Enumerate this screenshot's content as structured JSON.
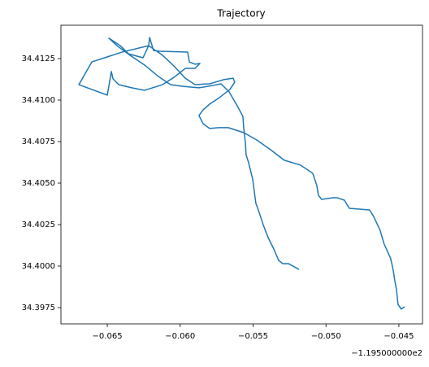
{
  "chart_data": {
    "type": "line",
    "title": "Trajectory",
    "x_offset_label": "−1.195000000e2",
    "color": "#1f77b4",
    "xlim": [
      -0.06818,
      -0.04338
    ],
    "ylim": [
      34.39652,
      34.41451
    ],
    "xticks": [
      {
        "value": -0.065,
        "label": "−0.065"
      },
      {
        "value": -0.06,
        "label": "−0.060"
      },
      {
        "value": -0.055,
        "label": "−0.055"
      },
      {
        "value": -0.05,
        "label": "−0.050"
      },
      {
        "value": -0.045,
        "label": "−0.045"
      }
    ],
    "yticks": [
      34.3975,
      {
        "value": 34.4,
        "label": "34.4000"
      },
      34.4025,
      {
        "value": 34.405,
        "label": "34.4050"
      },
      34.4075,
      {
        "value": 34.41,
        "label": "34.4100"
      },
      34.4125
    ],
    "x": [
      -0.05185,
      -0.05258,
      -0.05297,
      -0.05325,
      -0.05358,
      -0.05397,
      -0.05431,
      -0.05464,
      -0.05481,
      -0.05492,
      -0.05503,
      -0.05531,
      -0.05548,
      -0.05553,
      -0.05564,
      -0.0557,
      -0.05609,
      -0.05664,
      -0.0572,
      -0.05776,
      -0.05871,
      -0.05982,
      -0.06066,
      -0.06149,
      -0.06244,
      -0.06344,
      -0.06428,
      -0.06489,
      -0.06411,
      -0.06355,
      -0.06255,
      -0.06216,
      -0.0621,
      -0.06183,
      -0.06138,
      -0.05949,
      -0.05937,
      -0.05898,
      -0.05865,
      -0.05898,
      -0.05965,
      -0.06043,
      -0.06121,
      -0.06244,
      -0.06333,
      -0.06422,
      -0.06461,
      -0.06472,
      -0.065,
      -0.06695,
      -0.06606,
      -0.064,
      -0.06216,
      -0.06121,
      -0.06038,
      -0.05965,
      -0.05898,
      -0.05798,
      -0.05703,
      -0.05637,
      -0.05626,
      -0.05659,
      -0.05731,
      -0.05798,
      -0.05843,
      -0.05871,
      -0.05843,
      -0.05798,
      -0.05737,
      -0.0567,
      -0.05564,
      -0.05475,
      -0.0538,
      -0.05286,
      -0.05174,
      -0.05091,
      -0.05063,
      -0.05052,
      -0.0503,
      -0.04952,
      -0.04924,
      -0.04874,
      -0.0484,
      -0.04701,
      -0.04673,
      -0.04629,
      -0.04601,
      -0.04556,
      -0.04539,
      -0.04528,
      -0.04517,
      -0.04506,
      -0.04484,
      -0.04461
    ],
    "values": [
      34.3998,
      34.40015,
      34.40015,
      34.40035,
      34.40103,
      34.40172,
      34.4025,
      34.40338,
      34.40378,
      34.40451,
      34.40525,
      34.40623,
      34.40672,
      34.40745,
      34.40829,
      34.40902,
      34.40966,
      34.41049,
      34.41098,
      34.41088,
      34.41074,
      34.41083,
      34.41093,
      34.41142,
      34.41211,
      34.4127,
      34.41324,
      34.41373,
      34.41328,
      34.41279,
      34.41255,
      34.41328,
      34.41377,
      34.41299,
      34.41294,
      34.41289,
      34.4123,
      34.41216,
      34.41221,
      34.41191,
      34.41191,
      34.41137,
      34.41093,
      34.41059,
      34.41074,
      34.41093,
      34.41128,
      34.41172,
      34.4103,
      34.41093,
      34.4123,
      34.41289,
      34.41328,
      34.4127,
      34.41201,
      34.41132,
      34.41093,
      34.41098,
      34.41123,
      34.41132,
      34.41108,
      34.41064,
      34.41015,
      34.40976,
      34.40941,
      34.40907,
      34.40858,
      34.40829,
      34.40834,
      34.40834,
      34.40804,
      34.4076,
      34.40701,
      34.40638,
      34.40608,
      34.40559,
      34.40486,
      34.40427,
      34.40402,
      34.40412,
      34.40412,
      34.40397,
      34.40348,
      34.40338,
      34.40299,
      34.40216,
      34.40133,
      34.40045,
      34.39976,
      34.39912,
      34.39863,
      34.3977,
      34.39741,
      34.39755
    ]
  }
}
